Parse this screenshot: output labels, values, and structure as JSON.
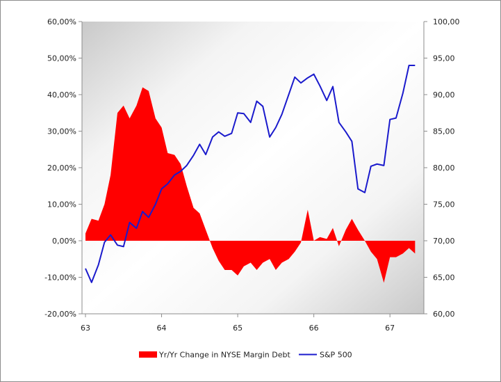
{
  "chart_data": {
    "type": "area+line",
    "title": "",
    "xlabel": "",
    "ylabel_left": "",
    "ylabel_right": "",
    "x_ticks": [
      "63",
      "64",
      "65",
      "66",
      "67"
    ],
    "y_left_ticks": [
      "60,00%",
      "50,00%",
      "40,00%",
      "30,00%",
      "20,00%",
      "10,00%",
      "0,00%",
      "-10,00%",
      "-20,00%"
    ],
    "y_right_ticks": [
      "100,00",
      "95,00",
      "90,00",
      "85,00",
      "80,00",
      "75,00",
      "70,00",
      "65,00",
      "60,00"
    ],
    "xlim": [
      63,
      67.4
    ],
    "ylim_left": [
      -20,
      60
    ],
    "ylim_right": [
      60,
      100
    ],
    "grid": false,
    "legend_position": "bottom",
    "series": [
      {
        "name": "Yr/Yr Change in NYSE Margin Debt",
        "kind": "area",
        "axis": "left",
        "color": "#ff0000",
        "x": [
          63.0,
          63.08,
          63.17,
          63.25,
          63.33,
          63.42,
          63.5,
          63.58,
          63.67,
          63.75,
          63.83,
          63.92,
          64.0,
          64.08,
          64.17,
          64.25,
          64.33,
          64.42,
          64.5,
          64.58,
          64.67,
          64.75,
          64.83,
          64.92,
          65.0,
          65.08,
          65.17,
          65.25,
          65.33,
          65.42,
          65.5,
          65.58,
          65.67,
          65.75,
          65.83,
          65.92,
          66.0,
          66.08,
          66.17,
          66.25,
          66.33,
          66.42,
          66.5,
          66.58,
          66.67,
          66.75,
          66.83,
          66.92,
          67.0,
          67.08,
          67.17,
          67.25,
          67.33
        ],
        "values": [
          2.0,
          6.0,
          5.5,
          10.0,
          18.0,
          35.0,
          37.0,
          33.5,
          37.0,
          42.0,
          41.0,
          33.5,
          31.0,
          24.0,
          23.5,
          21.0,
          15.0,
          9.0,
          7.5,
          3.0,
          -2.0,
          -5.5,
          -8.0,
          -8.0,
          -9.5,
          -7.0,
          -6.0,
          -8.0,
          -6.0,
          -5.0,
          -8.0,
          -6.0,
          -5.0,
          -3.0,
          -0.5,
          8.5,
          0.0,
          1.0,
          0.5,
          3.5,
          -1.5,
          3.0,
          6.0,
          3.0,
          0.0,
          -3.0,
          -5.0,
          -11.5,
          -4.5,
          -4.5,
          -3.5,
          -2.0,
          -3.5
        ]
      },
      {
        "name": "S&P 500",
        "kind": "line",
        "axis": "right",
        "color": "#1a1acc",
        "x": [
          63.0,
          63.08,
          63.17,
          63.25,
          63.33,
          63.42,
          63.5,
          63.58,
          63.67,
          63.75,
          63.83,
          63.92,
          64.0,
          64.08,
          64.17,
          64.25,
          64.33,
          64.42,
          64.5,
          64.58,
          64.67,
          64.75,
          64.83,
          64.92,
          65.0,
          65.08,
          65.17,
          65.25,
          65.33,
          65.42,
          65.5,
          65.58,
          65.67,
          65.75,
          65.83,
          65.92,
          66.0,
          66.08,
          66.17,
          66.25,
          66.33,
          66.42,
          66.5,
          66.58,
          66.67,
          66.75,
          66.83,
          66.92,
          67.0,
          67.08,
          67.17,
          67.25,
          67.33
        ],
        "values": [
          66.2,
          64.3,
          66.7,
          69.8,
          70.8,
          69.4,
          69.2,
          72.5,
          71.7,
          74.0,
          73.2,
          75.0,
          77.1,
          77.8,
          79.0,
          79.5,
          80.3,
          81.7,
          83.2,
          81.8,
          84.2,
          84.9,
          84.3,
          84.7,
          87.5,
          87.4,
          86.2,
          89.1,
          88.4,
          84.2,
          85.5,
          87.3,
          90.0,
          92.4,
          91.6,
          92.3,
          92.8,
          91.2,
          89.2,
          91.1,
          86.2,
          84.9,
          83.6,
          77.1,
          76.6,
          80.2,
          80.5,
          80.3,
          86.6,
          86.8,
          90.2,
          94.0,
          94.0
        ]
      }
    ]
  }
}
